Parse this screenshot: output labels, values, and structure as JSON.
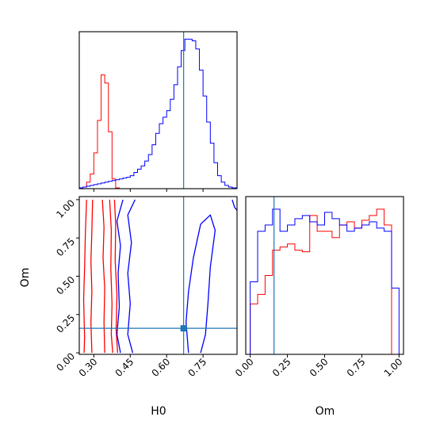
{
  "chart_data": {
    "type": "corner",
    "parameters": [
      "H0",
      "Om"
    ],
    "truth": {
      "H0": 0.67,
      "Om": 0.16
    },
    "colors": {
      "series_red": "#ff0000",
      "series_blue": "#0000ff",
      "truth": "#1f77b4"
    },
    "panels": [
      {
        "id": "hist-H0",
        "type": "histogram",
        "x_param": "H0",
        "xlim": [
          0.24,
          0.89
        ],
        "bin_edges": [
          0.24,
          0.255,
          0.27,
          0.285,
          0.3,
          0.315,
          0.33,
          0.345,
          0.36,
          0.375,
          0.39,
          0.405,
          0.42,
          0.435,
          0.45,
          0.465,
          0.48,
          0.495,
          0.51,
          0.525,
          0.54,
          0.555,
          0.57,
          0.585,
          0.6,
          0.615,
          0.63,
          0.645,
          0.66,
          0.675,
          0.69,
          0.705,
          0.72,
          0.735,
          0.75,
          0.765,
          0.78,
          0.795,
          0.81,
          0.825,
          0.84,
          0.855,
          0.87,
          0.89
        ],
        "series": [
          {
            "color": "red",
            "counts": [
              0.005,
              0.01,
              0.04,
              0.09,
              0.22,
              0.42,
              0.7,
              0.65,
              0.35,
              0.06,
              0.005,
              0,
              0,
              0,
              0,
              0,
              0,
              0,
              0,
              0,
              0,
              0,
              0,
              0,
              0,
              0,
              0,
              0,
              0,
              0,
              0,
              0,
              0,
              0,
              0,
              0,
              0,
              0,
              0,
              0,
              0,
              0,
              0
            ]
          },
          {
            "color": "blue",
            "counts": [
              0.005,
              0.01,
              0.015,
              0.02,
              0.025,
              0.03,
              0.035,
              0.04,
              0.045,
              0.05,
              0.055,
              0.06,
              0.065,
              0.07,
              0.08,
              0.1,
              0.12,
              0.14,
              0.17,
              0.21,
              0.27,
              0.34,
              0.4,
              0.44,
              0.48,
              0.55,
              0.64,
              0.75,
              0.85,
              0.92,
              0.92,
              0.91,
              0.86,
              0.73,
              0.57,
              0.41,
              0.28,
              0.16,
              0.08,
              0.04,
              0.02,
              0.01,
              0.005
            ]
          }
        ]
      },
      {
        "id": "contour-H0-Om",
        "type": "contour",
        "x_param": "H0",
        "y_param": "Om",
        "xlim": [
          0.24,
          0.89
        ],
        "ylim": [
          -0.01,
          1.02
        ],
        "contours": [
          {
            "color": "red",
            "points": [
              [
                0.27,
                1.0
              ],
              [
                0.265,
                0.78
              ],
              [
                0.262,
                0.55
              ],
              [
                0.258,
                0.35
              ],
              [
                0.262,
                0.1
              ],
              [
                0.26,
                0.0
              ]
            ]
          },
          {
            "color": "red",
            "points": [
              [
                0.295,
                1.0
              ],
              [
                0.292,
                0.8
              ],
              [
                0.288,
                0.6
              ],
              [
                0.292,
                0.4
              ],
              [
                0.288,
                0.2
              ],
              [
                0.292,
                0.0
              ]
            ]
          },
          {
            "color": "red",
            "points": [
              [
                0.335,
                1.0
              ],
              [
                0.342,
                0.82
              ],
              [
                0.338,
                0.62
              ],
              [
                0.345,
                0.42
              ],
              [
                0.342,
                0.2
              ],
              [
                0.345,
                0.0
              ]
            ]
          },
          {
            "color": "red",
            "points": [
              [
                0.365,
                1.0
              ],
              [
                0.372,
                0.8
              ],
              [
                0.37,
                0.55
              ],
              [
                0.375,
                0.32
              ],
              [
                0.372,
                0.12
              ],
              [
                0.378,
                0.0
              ]
            ]
          },
          {
            "color": "red",
            "points": [
              [
                0.385,
                1.0
              ],
              [
                0.39,
                0.84
              ],
              [
                0.388,
                0.6
              ],
              [
                0.395,
                0.38
              ],
              [
                0.392,
                0.15
              ],
              [
                0.398,
                0.0
              ]
            ]
          },
          {
            "color": "blue",
            "points": [
              [
                0.42,
                1.0
              ],
              [
                0.395,
                0.86
              ],
              [
                0.41,
                0.7
              ],
              [
                0.4,
                0.52
              ],
              [
                0.405,
                0.3
              ],
              [
                0.395,
                0.12
              ],
              [
                0.41,
                0.0
              ]
            ]
          },
          {
            "color": "blue",
            "points": [
              [
                0.47,
                1.0
              ],
              [
                0.44,
                0.9
              ],
              [
                0.455,
                0.72
              ],
              [
                0.44,
                0.52
              ],
              [
                0.45,
                0.32
              ],
              [
                0.44,
                0.12
              ],
              [
                0.46,
                0.0
              ]
            ]
          },
          {
            "color": "blue",
            "points": [
              [
                0.69,
                0.0
              ],
              [
                0.68,
                0.2
              ],
              [
                0.69,
                0.4
              ],
              [
                0.71,
                0.62
              ],
              [
                0.74,
                0.84
              ],
              [
                0.78,
                0.9
              ],
              [
                0.8,
                0.8
              ],
              [
                0.78,
                0.56
              ],
              [
                0.77,
                0.32
              ],
              [
                0.76,
                0.12
              ],
              [
                0.74,
                0.0
              ]
            ]
          },
          {
            "color": "blue",
            "points": [
              [
                0.87,
                1.0
              ],
              [
                0.88,
                0.95
              ],
              [
                0.89,
                0.93
              ]
            ]
          }
        ]
      },
      {
        "id": "hist-Om",
        "type": "histogram",
        "x_param": "Om",
        "xlim": [
          -0.03,
          1.03
        ],
        "bin_edges": [
          0.0,
          0.05,
          0.1,
          0.15,
          0.2,
          0.25,
          0.3,
          0.35,
          0.4,
          0.45,
          0.5,
          0.55,
          0.6,
          0.65,
          0.7,
          0.75,
          0.8,
          0.85,
          0.9,
          0.95,
          1.0
        ],
        "series": [
          {
            "color": "red",
            "counts": [
              0.32,
              0.38,
              0.5,
              0.66,
              0.68,
              0.7,
              0.66,
              0.65,
              0.88,
              0.78,
              0.78,
              0.74,
              0.82,
              0.84,
              0.8,
              0.85,
              0.88,
              0.92,
              0.82,
              0.0
            ]
          },
          {
            "color": "blue",
            "counts": [
              0.46,
              0.78,
              0.82,
              0.92,
              0.78,
              0.82,
              0.86,
              0.88,
              0.84,
              0.82,
              0.9,
              0.86,
              0.82,
              0.78,
              0.8,
              0.82,
              0.84,
              0.8,
              0.78,
              0.42
            ]
          }
        ]
      }
    ],
    "x_ticks_H0": [
      0.3,
      0.45,
      0.6,
      0.75
    ],
    "x_tick_labels_H0": [
      "0.30",
      "0.45",
      "0.60",
      "0.75"
    ],
    "y_ticks_Om": [
      0.0,
      0.25,
      0.5,
      0.75,
      1.0
    ],
    "y_tick_labels_Om": [
      "0.00",
      "0.25",
      "0.50",
      "0.75",
      "1.00"
    ],
    "x_ticks_Om": [
      0.0,
      0.25,
      0.5,
      0.75,
      1.0
    ],
    "x_tick_labels_Om": [
      "0.00",
      "0.25",
      "0.50",
      "0.75",
      "1.00"
    ],
    "xlabel_bottom_left": "H0",
    "xlabel_bottom_right": "Om",
    "ylabel_left": "Om"
  }
}
